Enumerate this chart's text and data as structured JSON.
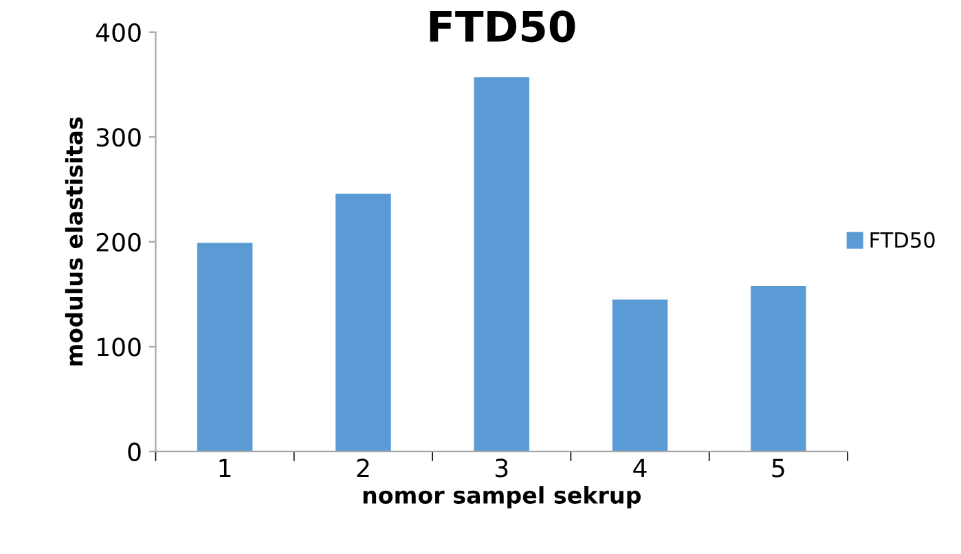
{
  "chart_data": {
    "type": "bar",
    "title": "FTD50",
    "xlabel": "nomor sampel sekrup",
    "ylabel": "modulus elastisitas",
    "categories": [
      "1",
      "2",
      "3",
      "4",
      "5"
    ],
    "series": [
      {
        "name": "FTD50",
        "color": "#5b9bd5",
        "values": [
          199,
          246,
          357,
          145,
          158
        ]
      }
    ],
    "ylim": [
      0,
      400
    ],
    "yticks": [
      0,
      100,
      200,
      300,
      400
    ],
    "grid": false,
    "legend": "right"
  }
}
